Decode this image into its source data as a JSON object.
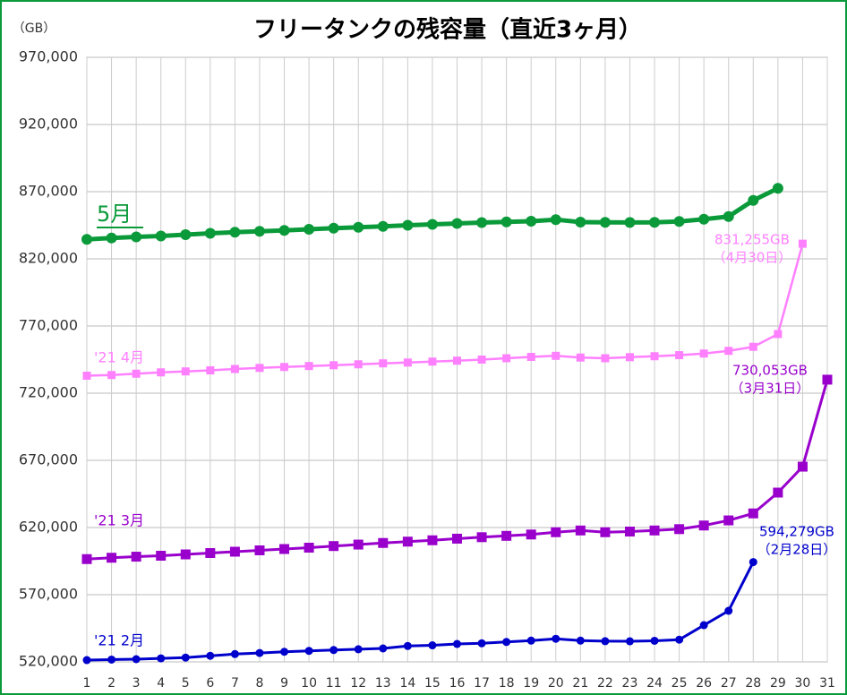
{
  "chart_data": {
    "type": "line",
    "title": "フリータンクの残容量（直近3ヶ月）",
    "y_unit": "（GB）",
    "xlim": [
      1,
      31
    ],
    "xticks": [
      1,
      2,
      3,
      4,
      5,
      6,
      7,
      8,
      9,
      10,
      11,
      12,
      13,
      14,
      15,
      16,
      17,
      18,
      19,
      20,
      21,
      22,
      23,
      24,
      25,
      26,
      27,
      28,
      29,
      30,
      31
    ],
    "ylim": [
      520000,
      970000
    ],
    "yticks": [
      {
        "value": 520000,
        "label": "520,000"
      },
      {
        "value": 570000,
        "label": "570,000"
      },
      {
        "value": 620000,
        "label": "620,000"
      },
      {
        "value": 670000,
        "label": "670,000"
      },
      {
        "value": 720000,
        "label": "720,000"
      },
      {
        "value": 770000,
        "label": "770,000"
      },
      {
        "value": 820000,
        "label": "820,000"
      },
      {
        "value": 870000,
        "label": "870,000"
      },
      {
        "value": 920000,
        "label": "920,000"
      },
      {
        "value": 970000,
        "label": "970,000"
      }
    ],
    "grid": true,
    "series": [
      {
        "name": "5月",
        "color": "#0a9a3a",
        "marker": "circle",
        "x": [
          1,
          2,
          3,
          4,
          5,
          6,
          7,
          8,
          9,
          10,
          11,
          12,
          13,
          14,
          15,
          16,
          17,
          18,
          19,
          20,
          21,
          22,
          23,
          24,
          25,
          26,
          27,
          28,
          29
        ],
        "values": [
          834500,
          835500,
          836300,
          837000,
          838000,
          839000,
          839800,
          840500,
          841200,
          842000,
          842800,
          843500,
          844200,
          845000,
          845700,
          846300,
          847000,
          847500,
          848000,
          849200,
          847300,
          847200,
          847100,
          847200,
          847800,
          849500,
          851500,
          863500,
          872500
        ]
      },
      {
        "name": "'21 4月",
        "color": "#ff80ff",
        "marker": "square",
        "x": [
          1,
          2,
          3,
          4,
          5,
          6,
          7,
          8,
          9,
          10,
          11,
          12,
          13,
          14,
          15,
          16,
          17,
          18,
          19,
          20,
          21,
          22,
          23,
          24,
          25,
          26,
          27,
          28,
          29,
          30
        ],
        "values": [
          733000,
          733500,
          734500,
          735500,
          736200,
          737000,
          738000,
          738800,
          739500,
          740200,
          740800,
          741500,
          742200,
          742800,
          743500,
          744200,
          745000,
          746000,
          747000,
          747800,
          746500,
          746000,
          746800,
          747500,
          748300,
          749500,
          751500,
          754500,
          764000,
          831255
        ],
        "value_labels": [
          null,
          null,
          null,
          null,
          null,
          null,
          null,
          null,
          null,
          null,
          null,
          null,
          null,
          null,
          null,
          null,
          null,
          null,
          null,
          null,
          null,
          null,
          null,
          null,
          null,
          null,
          null,
          null,
          null,
          "831,255GB"
        ],
        "note": "（4月30日）"
      },
      {
        "name": "'21 3月",
        "color": "#9900cc",
        "marker": "square",
        "x": [
          1,
          2,
          3,
          4,
          5,
          6,
          7,
          8,
          9,
          10,
          11,
          12,
          13,
          14,
          15,
          16,
          17,
          18,
          19,
          20,
          21,
          22,
          23,
          24,
          25,
          26,
          27,
          28,
          29,
          30,
          31
        ],
        "values": [
          596500,
          597500,
          598300,
          599000,
          600000,
          601000,
          602000,
          603000,
          604000,
          605000,
          606200,
          607300,
          608500,
          609500,
          610500,
          611700,
          612800,
          613800,
          614800,
          616500,
          617800,
          616500,
          617000,
          617800,
          618800,
          621500,
          625300,
          630500,
          646000,
          665300,
          730053
        ],
        "value_labels": [
          null,
          null,
          null,
          null,
          null,
          null,
          null,
          null,
          null,
          null,
          null,
          null,
          null,
          null,
          null,
          null,
          null,
          null,
          null,
          null,
          null,
          null,
          null,
          null,
          null,
          null,
          null,
          null,
          null,
          null,
          "730,053GB"
        ],
        "note": "（3月31日）"
      },
      {
        "name": "'21 2月",
        "color": "#0000cc",
        "marker": "circle",
        "x": [
          1,
          2,
          3,
          4,
          5,
          6,
          7,
          8,
          9,
          10,
          11,
          12,
          13,
          14,
          15,
          16,
          17,
          18,
          19,
          20,
          21,
          22,
          23,
          24,
          25,
          26,
          27,
          28
        ],
        "values": [
          521300,
          521700,
          522000,
          522600,
          523200,
          524500,
          525800,
          526600,
          527500,
          528200,
          528800,
          529400,
          530000,
          531800,
          532300,
          533300,
          533800,
          534800,
          535800,
          537200,
          535800,
          535400,
          535300,
          535700,
          536500,
          547300,
          558000,
          594279
        ],
        "value_labels": [
          null,
          null,
          null,
          null,
          null,
          null,
          null,
          null,
          null,
          null,
          null,
          null,
          null,
          null,
          null,
          null,
          null,
          null,
          null,
          null,
          null,
          null,
          null,
          null,
          null,
          null,
          null,
          "594,279GB"
        ],
        "note": "（2月28日）"
      }
    ]
  }
}
